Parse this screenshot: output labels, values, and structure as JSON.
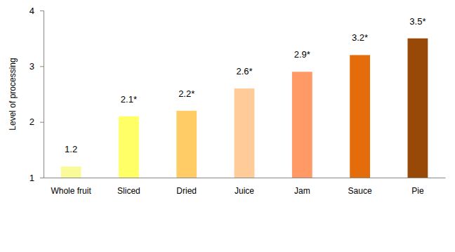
{
  "chart_data": {
    "type": "bar",
    "y_label": "Level of processing",
    "categories": [
      "Whole fruit",
      "Sliced",
      "Dried",
      "Juice",
      "Jam",
      "Sauce",
      "Pie"
    ],
    "values": [
      1.2,
      2.1,
      2.2,
      2.6,
      2.9,
      3.2,
      3.5
    ],
    "value_labels": [
      "1.2",
      "2.1*",
      "2.2*",
      "2.6*",
      "2.9*",
      "3.2*",
      "3.5*"
    ],
    "colors": [
      "#fafa9b",
      "#ffff66",
      "#ffcc66",
      "#ffcc99",
      "#ff9966",
      "#e46c0a",
      "#984807"
    ],
    "ylim": [
      1,
      4
    ],
    "yticks": [
      1,
      2,
      3,
      4
    ],
    "grid": false,
    "data_labels": true
  }
}
